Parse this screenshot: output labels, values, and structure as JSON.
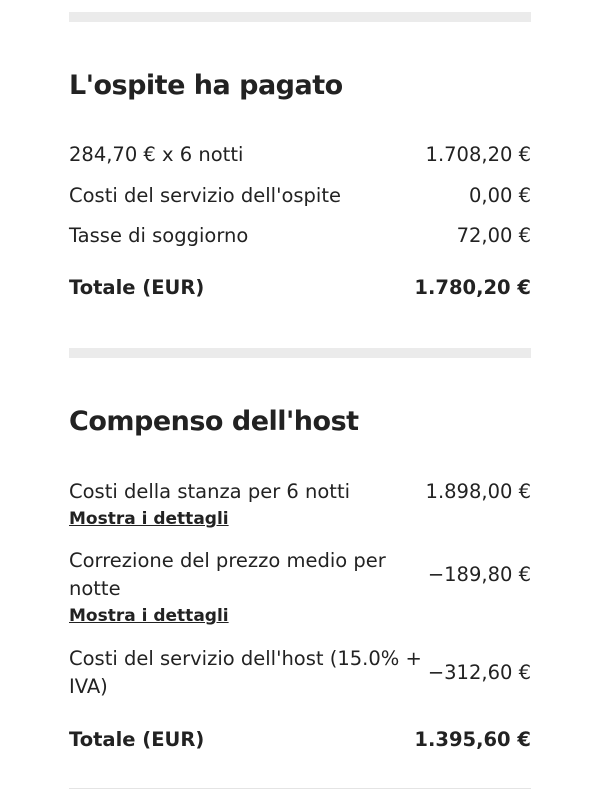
{
  "guest_paid": {
    "title": "L'ospite ha pagato",
    "rows": [
      {
        "label": "284,70 € x 6 notti",
        "value": "1.708,20 €"
      },
      {
        "label": "Costi del servizio dell'ospite",
        "value": "0,00 €"
      },
      {
        "label": "Tasse di soggiorno",
        "value": "72,00 €"
      }
    ],
    "total_label": "Totale (EUR)",
    "total_value": "1.780,20 €"
  },
  "host_payout": {
    "title": "Compenso dell'host",
    "rows": [
      {
        "label": "Costi della stanza per 6 notti",
        "value": "1.898,00 €",
        "link": "Mostra i dettagli"
      },
      {
        "label": "Correzione del prezzo medio per notte",
        "value": "−189,80 €",
        "link": "Mostra i dettagli"
      },
      {
        "label": "Costi del servizio dell'host (15.0% + IVA)",
        "value": "−312,60 €"
      }
    ],
    "total_label": "Totale (EUR)",
    "total_value": "1.395,60 €"
  }
}
